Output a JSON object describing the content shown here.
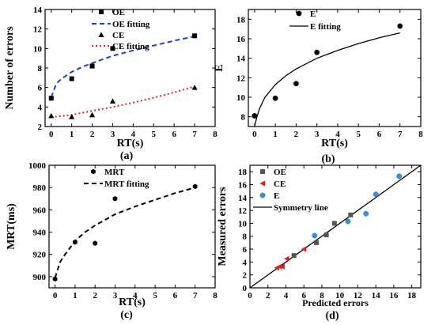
{
  "colors": {
    "blue": "#1f3fd1",
    "red": "#e3201b",
    "black": "#000000",
    "grey": "#555555",
    "lightblue": "#3a8fe0"
  },
  "chart_data": [
    {
      "id": "a",
      "type": "scatter",
      "panel_label": "(a)",
      "xlabel": "RT(s)",
      "ylabel": "Number of errors",
      "xlim": [
        -0.3,
        8
      ],
      "ylim": [
        2,
        14
      ],
      "xticks": [
        0,
        1,
        2,
        3,
        4,
        5,
        6,
        7,
        8
      ],
      "yticks": [
        2,
        4,
        6,
        8,
        10,
        12,
        14
      ],
      "series": [
        {
          "name": "OE",
          "marker": "square",
          "color": "#000000",
          "x": [
            0,
            1,
            2,
            3,
            7
          ],
          "y": [
            4.9,
            6.9,
            8.2,
            10.0,
            11.3
          ]
        },
        {
          "name": "OE fitting",
          "style": "dash",
          "color": "#1f3fd1",
          "x": [
            0,
            0.25,
            0.5,
            1,
            1.5,
            2,
            3,
            4,
            5,
            6,
            7
          ],
          "y": [
            5.0,
            6.4,
            6.9,
            7.6,
            8.1,
            8.5,
            9.25,
            9.8,
            10.3,
            10.8,
            11.25
          ]
        },
        {
          "name": "CE",
          "marker": "triangle",
          "color": "#000000",
          "x": [
            0,
            1,
            2,
            3,
            7
          ],
          "y": [
            3.1,
            3.0,
            3.2,
            4.6,
            6.0
          ]
        },
        {
          "name": "CE fitting",
          "style": "dot",
          "color": "#e3201b",
          "x": [
            0,
            1,
            2,
            3,
            4,
            5,
            6,
            7
          ],
          "y": [
            2.95,
            3.2,
            3.6,
            4.0,
            4.45,
            4.95,
            5.5,
            6.1
          ]
        }
      ]
    },
    {
      "id": "b",
      "type": "scatter",
      "panel_label": "(b)",
      "xlabel": "RT(s)",
      "ylabel": "E",
      "xlim": [
        -0.3,
        8
      ],
      "ylim": [
        7,
        19
      ],
      "xticks": [
        0,
        1,
        2,
        3,
        4,
        5,
        6,
        7,
        8
      ],
      "yticks": [
        8,
        10,
        12,
        14,
        16,
        18
      ],
      "series": [
        {
          "name": "E",
          "marker": "circle",
          "color": "#000000",
          "x": [
            0,
            1,
            2,
            3,
            7
          ],
          "y": [
            8.1,
            9.9,
            11.4,
            14.6,
            17.3
          ]
        },
        {
          "name": "E fitting",
          "style": "solid",
          "color": "#000000",
          "x": [
            0,
            0.1,
            0.25,
            0.5,
            1,
            1.5,
            2,
            3,
            4,
            5,
            6,
            7
          ],
          "y": [
            7.0,
            7.9,
            8.9,
            10.0,
            11.3,
            12.2,
            12.9,
            14.0,
            14.8,
            15.5,
            16.1,
            16.6
          ]
        }
      ]
    },
    {
      "id": "c",
      "type": "scatter",
      "panel_label": "(c)",
      "xlabel": "RT(s)",
      "ylabel": "MRT(ms)",
      "xlim": [
        -0.3,
        8
      ],
      "ylim": [
        890,
        1000
      ],
      "xticks": [
        0,
        1,
        2,
        3,
        4,
        5,
        6,
        7,
        8
      ],
      "yticks": [
        900,
        920,
        940,
        960,
        980,
        1000
      ],
      "series": [
        {
          "name": "MRT",
          "marker": "hexagon",
          "color": "#000000",
          "x": [
            0,
            1,
            2,
            3,
            7
          ],
          "y": [
            898,
            931,
            930,
            970,
            981
          ]
        },
        {
          "name": "MRT fitting",
          "style": "dash",
          "color": "#000000",
          "x": [
            0,
            0.25,
            0.5,
            1,
            1.5,
            2,
            3,
            4,
            5,
            6,
            7
          ],
          "y": [
            899,
            913,
            920,
            932,
            940,
            946,
            956,
            963,
            969,
            975,
            980
          ]
        }
      ]
    },
    {
      "id": "d",
      "type": "scatter",
      "panel_label": "(d)",
      "xlabel": "Predicted errors",
      "ylabel": "Measured errors",
      "xlim": [
        0,
        19
      ],
      "ylim": [
        0,
        19
      ],
      "xticks": [
        0,
        2,
        4,
        6,
        8,
        10,
        12,
        14,
        16,
        18
      ],
      "yticks": [
        0,
        2,
        4,
        6,
        8,
        10,
        12,
        14,
        16,
        18
      ],
      "series": [
        {
          "name": "OE",
          "marker": "square",
          "color": "#555555",
          "x": [
            4.9,
            7.4,
            8.5,
            9.4,
            11.2
          ],
          "y": [
            5.0,
            7.0,
            8.2,
            10.0,
            11.3
          ]
        },
        {
          "name": "CE",
          "marker": "triangle-left",
          "color": "#e3201b",
          "x": [
            3.0,
            3.3,
            3.6,
            4.1,
            6.0
          ],
          "y": [
            3.1,
            3.3,
            3.3,
            4.5,
            6.0
          ]
        },
        {
          "name": "E",
          "marker": "circle",
          "color": "#3a8fe0",
          "x": [
            7.2,
            10.9,
            12.9,
            14.0,
            16.6
          ],
          "y": [
            8.1,
            10.3,
            11.5,
            14.5,
            17.3
          ]
        },
        {
          "name": "Symmetry line",
          "style": "solid",
          "color": "#000000",
          "x": [
            0,
            19
          ],
          "y": [
            0,
            19
          ]
        }
      ]
    }
  ]
}
